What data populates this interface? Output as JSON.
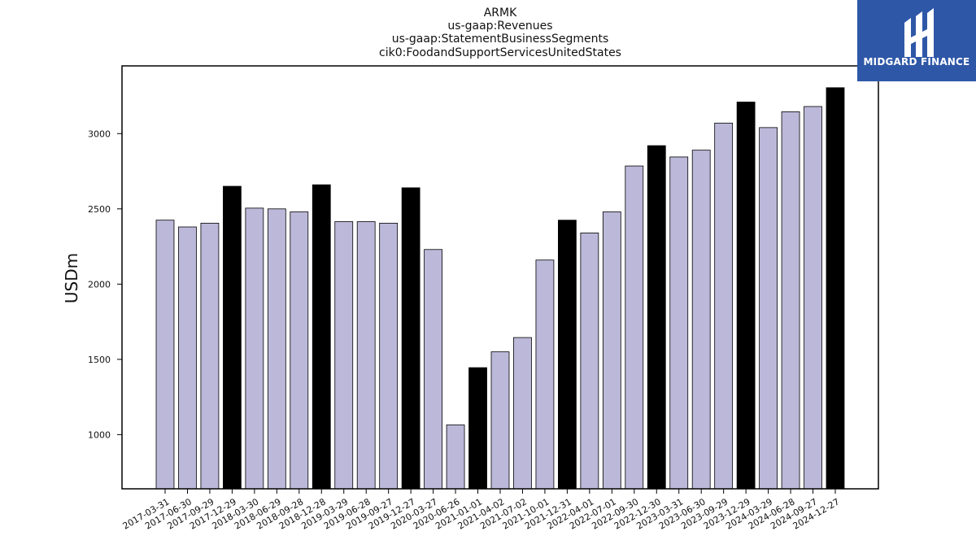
{
  "chart_data": {
    "type": "bar",
    "title_lines": [
      "ARMK",
      "us-gaap:Revenues",
      "us-gaap:StatementBusinessSegments",
      "cik0:FoodandSupportServicesUnitedStates"
    ],
    "xlabel": "",
    "ylabel": "USDm",
    "ylim": [
      640,
      3450
    ],
    "yticks": [
      1000,
      1500,
      2000,
      2500,
      3000
    ],
    "grid": false,
    "categories": [
      "2017-03-31",
      "2017-06-30",
      "2017-09-29",
      "2017-12-29",
      "2018-03-30",
      "2018-06-29",
      "2018-09-28",
      "2018-12-28",
      "2019-03-29",
      "2019-06-28",
      "2019-09-27",
      "2019-12-27",
      "2020-03-27",
      "2020-06-26",
      "2021-01-01",
      "2021-04-02",
      "2021-07-02",
      "2021-10-01",
      "2021-12-31",
      "2022-04-01",
      "2022-07-01",
      "2022-09-30",
      "2022-12-30",
      "2023-03-31",
      "2023-06-30",
      "2023-09-29",
      "2023-12-29",
      "2024-03-29",
      "2024-06-28",
      "2024-09-27",
      "2024-12-27"
    ],
    "values": [
      2425,
      2380,
      2405,
      2650,
      2505,
      2500,
      2480,
      2660,
      2415,
      2415,
      2405,
      2640,
      2230,
      1065,
      1445,
      1550,
      1645,
      2160,
      2425,
      2340,
      2480,
      2785,
      2920,
      2845,
      2890,
      3070,
      3210,
      3040,
      3145,
      3180,
      3305
    ],
    "highlighted": [
      false,
      false,
      false,
      true,
      false,
      false,
      false,
      true,
      false,
      false,
      false,
      true,
      false,
      false,
      true,
      false,
      false,
      false,
      true,
      false,
      false,
      false,
      true,
      false,
      false,
      false,
      true,
      false,
      false,
      false,
      true
    ],
    "colors": {
      "default_bar": "#bcb8d9",
      "highlight_bar": "#000000",
      "edge": "#000000"
    }
  },
  "logo": {
    "text": "MIDGARD FINANCE",
    "color": "#2f57a8"
  }
}
